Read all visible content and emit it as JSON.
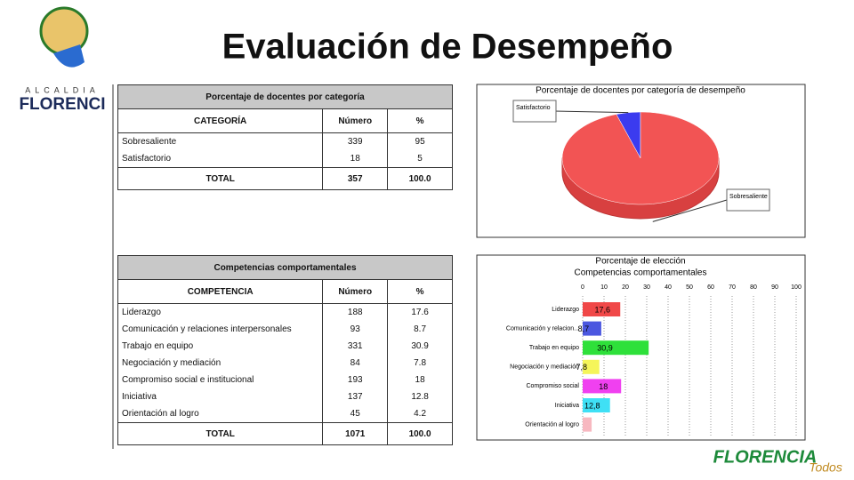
{
  "header": {
    "title": "Evaluación de Desempeño",
    "logo_top": "ALCALDIA",
    "logo_name": "FLORENCI",
    "logo_bottom": "FLORENCIA",
    "logo_bottom_sub": "Todos"
  },
  "table1": {
    "title": "Porcentaje de docentes por categoría",
    "headers": [
      "CATEGORÍA",
      "Número",
      "%"
    ],
    "rows": [
      [
        "Sobresaliente",
        "339",
        "95"
      ],
      [
        "Satisfactorio",
        "18",
        "5"
      ]
    ],
    "total": [
      "TOTAL",
      "357",
      "100.0"
    ]
  },
  "table2": {
    "title": "Competencias comportamentales",
    "headers": [
      "COMPETENCIA",
      "Número",
      "%"
    ],
    "rows": [
      [
        "Liderazgo",
        "188",
        "17.6"
      ],
      [
        "Comunicación y relaciones interpersonales",
        "93",
        "8.7"
      ],
      [
        "Trabajo en equipo",
        "331",
        "30.9"
      ],
      [
        "Negociación y mediación",
        "84",
        "7.8"
      ],
      [
        "Compromiso social e institucional",
        "193",
        "18"
      ],
      [
        "Iniciativa",
        "137",
        "12.8"
      ],
      [
        "Orientación al logro",
        "45",
        "4.2"
      ]
    ],
    "total": [
      "TOTAL",
      "1071",
      "100.0"
    ]
  },
  "chart_data": [
    {
      "type": "pie",
      "title": "Porcentaje de docentes por categoría de desempeño",
      "categories": [
        "Satisfactorio",
        "Sobresaliente"
      ],
      "values": [
        5,
        95
      ],
      "colors": [
        "#3b3bef",
        "#f25454"
      ]
    },
    {
      "type": "hbar",
      "title": "Porcentaje de elección",
      "subtitle": "Competencias comportamentales",
      "categories": [
        "Liderazgo",
        "Comunicación y relacion...",
        "Trabajo en equipo",
        "Negociación y mediación",
        "Compromiso social",
        "Iniciativa",
        "Orientación al logro"
      ],
      "values": [
        17.6,
        8.7,
        30.9,
        7.8,
        18,
        12.8,
        4.2
      ],
      "value_labels": [
        "17,6",
        "8,7",
        "30,9",
        "7,8",
        "18",
        "12,8",
        null
      ],
      "colors": [
        "#f04848",
        "#4b57e0",
        "#2ee03a",
        "#f5f55a",
        "#f040f0",
        "#3fe0f5",
        "#f7b8c0"
      ],
      "xlim": [
        0,
        100
      ],
      "xticks": [
        0,
        10,
        20,
        30,
        40,
        50,
        60,
        70,
        80,
        90,
        100
      ],
      "grid": true
    }
  ]
}
